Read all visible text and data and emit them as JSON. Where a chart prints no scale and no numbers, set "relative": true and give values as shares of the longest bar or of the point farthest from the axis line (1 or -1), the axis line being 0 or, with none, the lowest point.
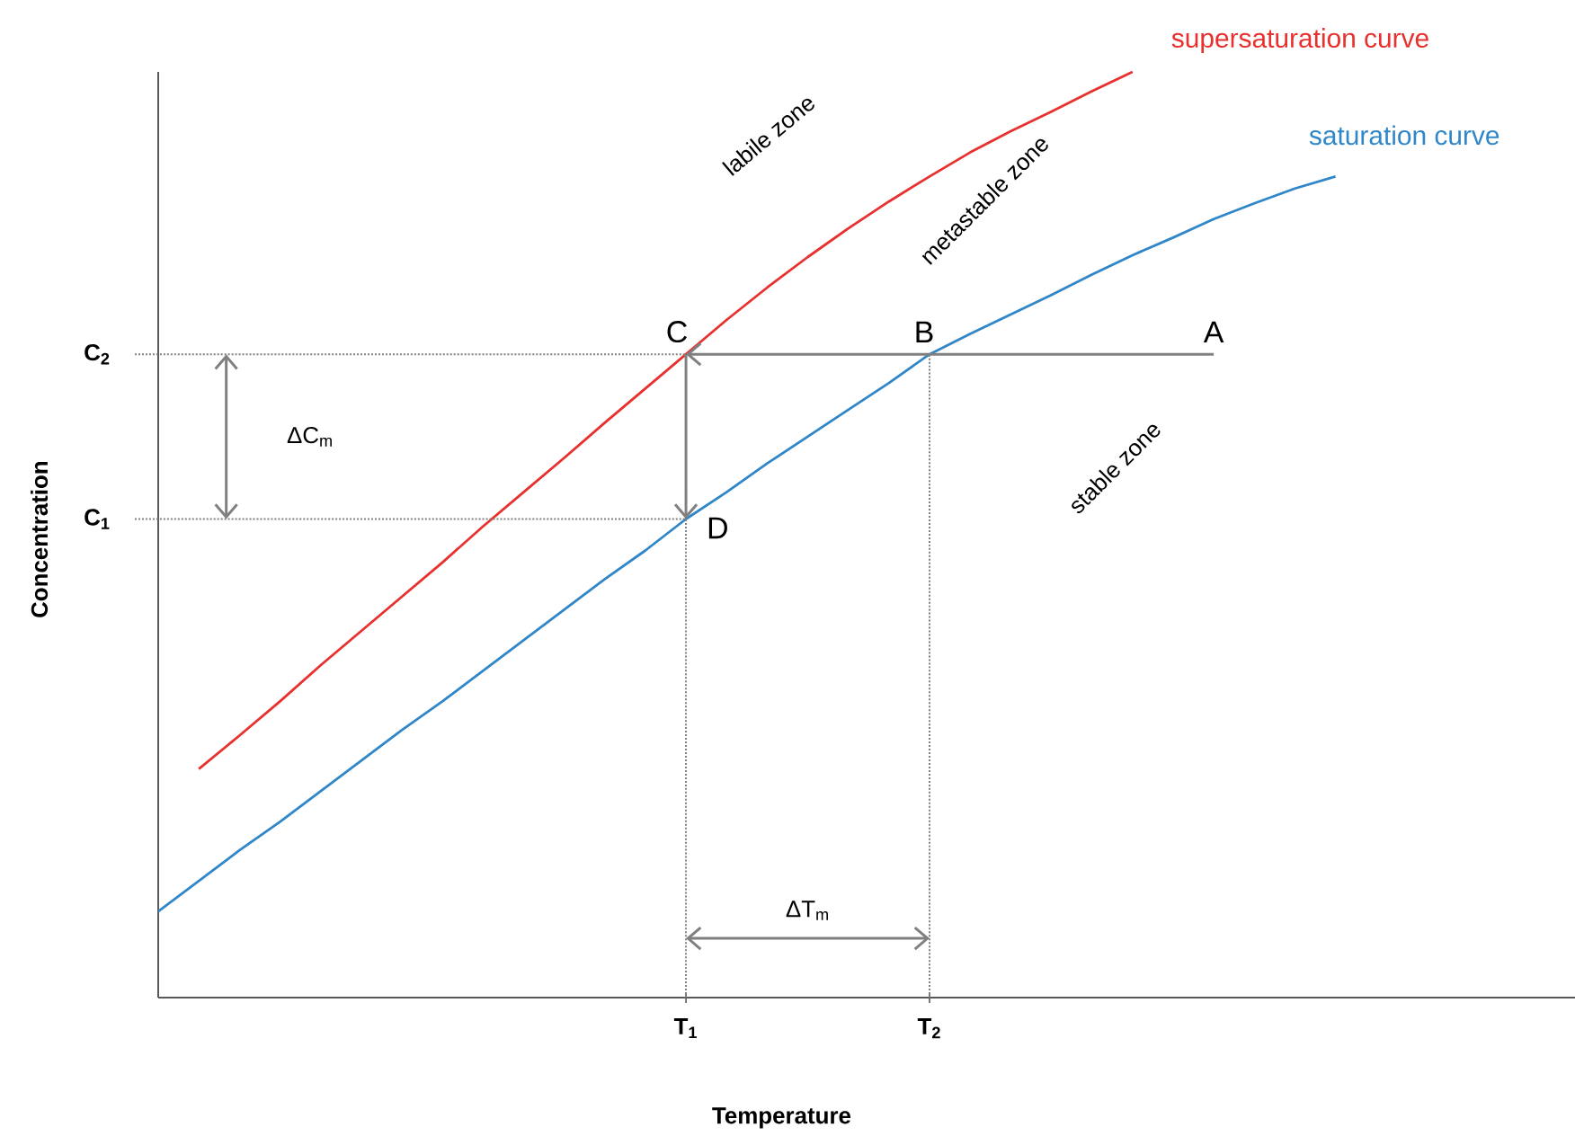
{
  "chart_data": {
    "type": "line",
    "relative": true,
    "xlabel": "Temperature",
    "ylabel": "Concentration",
    "categories": [
      null,
      null,
      null,
      null,
      null,
      null,
      null,
      null,
      null,
      null,
      null,
      null,
      null,
      "T$_{1}$",
      null,
      null,
      null,
      null,
      null,
      "T$_{2}$",
      null,
      null,
      null,
      null,
      null,
      null,
      null,
      null,
      null,
      null,
      null,
      null,
      null,
      null,
      null
    ],
    "series": [
      {
        "name": "supersaturation curve",
        "color": "#e8302e",
        "values": [
          null,
          0.247,
          0.283,
          0.32,
          0.359,
          0.396,
          0.433,
          0.47,
          0.509,
          0.546,
          0.583,
          0.621,
          0.658,
          0.695,
          0.732,
          0.767,
          0.8,
          0.831,
          0.86,
          0.887,
          0.913,
          0.936,
          0.957,
          0.979,
          1.0,
          null,
          null,
          null,
          null,
          null,
          null,
          null,
          null,
          null,
          null
        ]
      },
      {
        "name": "saturation curve",
        "color": "#2f86c8",
        "values": [
          0.093,
          0.126,
          0.159,
          0.19,
          0.223,
          0.256,
          0.289,
          0.32,
          0.353,
          0.386,
          0.419,
          0.452,
          0.483,
          0.517,
          0.546,
          0.577,
          0.606,
          0.635,
          0.664,
          0.695,
          0.717,
          0.738,
          0.759,
          0.781,
          0.802,
          0.821,
          0.841,
          0.858,
          0.874,
          0.887,
          null,
          null,
          null,
          null,
          null
        ]
      }
    ],
    "ref_lines": [
      {
        "axis": "y",
        "value": 0.517,
        "label": "C$_{1}$",
        "line_style": "dotted"
      },
      {
        "axis": "y",
        "value": 0.695,
        "label": "C$_{2}$",
        "line_style": "dotted"
      },
      {
        "axis": "x",
        "value": "T$_{1}$",
        "line_style": "dotted"
      },
      {
        "axis": "x",
        "value": "T$_{2}$",
        "line_style": "dotted"
      }
    ],
    "annotations": [
      "A",
      "B",
      "C",
      "D",
      "ΔC$_{m}$",
      "ΔT$_{m}$",
      "labile zone",
      "metastable zone",
      "stable zone"
    ]
  }
}
